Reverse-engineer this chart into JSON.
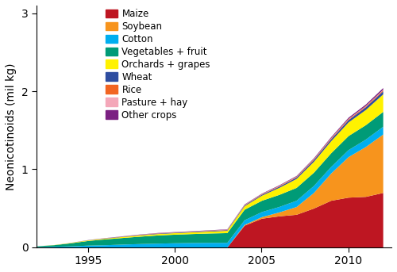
{
  "years": [
    1992,
    1993,
    1994,
    1995,
    1996,
    1997,
    1998,
    1999,
    2000,
    2001,
    2002,
    2003,
    2004,
    2005,
    2006,
    2007,
    2008,
    2009,
    2010,
    2011,
    2012
  ],
  "series": {
    "Maize": [
      0.0,
      0.0,
      0.0,
      0.0,
      0.0,
      0.0,
      0.0,
      0.0,
      0.0,
      0.0,
      0.0,
      0.0,
      0.28,
      0.37,
      0.4,
      0.42,
      0.5,
      0.6,
      0.64,
      0.65,
      0.7
    ],
    "Soybean": [
      0.0,
      0.0,
      0.0,
      0.0,
      0.0,
      0.0,
      0.0,
      0.0,
      0.0,
      0.0,
      0.0,
      0.0,
      0.01,
      0.02,
      0.05,
      0.1,
      0.2,
      0.35,
      0.52,
      0.64,
      0.75
    ],
    "Cotton": [
      0.005,
      0.01,
      0.015,
      0.025,
      0.03,
      0.038,
      0.045,
      0.05,
      0.055,
      0.058,
      0.06,
      0.06,
      0.06,
      0.065,
      0.07,
      0.08,
      0.09,
      0.085,
      0.09,
      0.095,
      0.1
    ],
    "Vegetables + fruit": [
      0.01,
      0.02,
      0.04,
      0.06,
      0.075,
      0.085,
      0.095,
      0.105,
      0.11,
      0.115,
      0.12,
      0.125,
      0.135,
      0.145,
      0.155,
      0.165,
      0.17,
      0.175,
      0.18,
      0.185,
      0.19
    ],
    "Orchards + grapes": [
      0.0,
      0.002,
      0.005,
      0.008,
      0.01,
      0.013,
      0.016,
      0.018,
      0.02,
      0.022,
      0.025,
      0.03,
      0.045,
      0.065,
      0.09,
      0.115,
      0.14,
      0.155,
      0.175,
      0.195,
      0.225
    ],
    "Wheat": [
      0.0,
      0.0,
      0.0,
      0.002,
      0.003,
      0.004,
      0.005,
      0.006,
      0.006,
      0.007,
      0.007,
      0.008,
      0.01,
      0.012,
      0.015,
      0.018,
      0.022,
      0.025,
      0.03,
      0.035,
      0.04
    ],
    "Rice": [
      0.0,
      0.0,
      0.0,
      0.0,
      0.001,
      0.002,
      0.002,
      0.003,
      0.003,
      0.003,
      0.004,
      0.004,
      0.005,
      0.006,
      0.007,
      0.008,
      0.009,
      0.01,
      0.011,
      0.012,
      0.013
    ],
    "Pasture + hay": [
      0.0,
      0.0,
      0.0,
      0.001,
      0.001,
      0.001,
      0.002,
      0.002,
      0.002,
      0.002,
      0.002,
      0.003,
      0.003,
      0.003,
      0.004,
      0.004,
      0.004,
      0.005,
      0.005,
      0.005,
      0.006
    ],
    "Other crops": [
      0.0,
      0.0,
      0.001,
      0.001,
      0.002,
      0.002,
      0.003,
      0.003,
      0.003,
      0.003,
      0.004,
      0.004,
      0.005,
      0.006,
      0.007,
      0.008,
      0.01,
      0.012,
      0.015,
      0.018,
      0.022
    ]
  },
  "colors": {
    "Maize": "#BE1622",
    "Soybean": "#F7941D",
    "Cotton": "#00AEEF",
    "Vegetables + fruit": "#009B77",
    "Orchards + grapes": "#FFF200",
    "Wheat": "#2E4DA0",
    "Rice": "#F26522",
    "Pasture + hay": "#F4A7B9",
    "Other crops": "#7B2082"
  },
  "ylabel": "Neonicotinoids (mil kg)",
  "ylim": [
    0,
    3.1
  ],
  "yticks": [
    0,
    1,
    2,
    3
  ],
  "xlim": [
    1992.0,
    2012.5
  ],
  "xticks": [
    1995,
    2000,
    2005,
    2010
  ],
  "legend_order": [
    "Maize",
    "Soybean",
    "Cotton",
    "Vegetables + fruit",
    "Orchards + grapes",
    "Wheat",
    "Rice",
    "Pasture + hay",
    "Other crops"
  ],
  "background_color": "#ffffff",
  "figsize": [
    5.0,
    3.43
  ],
  "dpi": 100
}
